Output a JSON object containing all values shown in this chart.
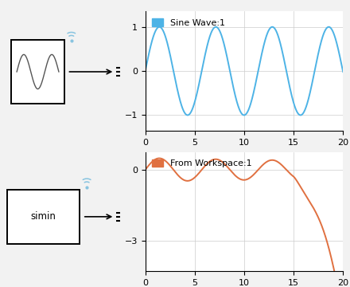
{
  "sine_title": "Sine Wave:1",
  "workspace_title": "From Workspace:1",
  "sine_color": "#4db3e6",
  "workspace_color": "#e07040",
  "xlim": [
    0,
    20
  ],
  "sine_ylim": [
    -1.35,
    1.35
  ],
  "workspace_ylim": [
    -4.3,
    0.75
  ],
  "sine_yticks": [
    -1,
    0,
    1
  ],
  "workspace_yticks": [
    -3,
    0
  ],
  "xticks": [
    0,
    5,
    10,
    15,
    20
  ],
  "bg_color": "#f2f2f2",
  "plot_bg": "#ffffff",
  "grid_color": "#cccccc",
  "tick_fontsize": 8,
  "freq_sine": 1.1,
  "freq_workspace": 1.1
}
